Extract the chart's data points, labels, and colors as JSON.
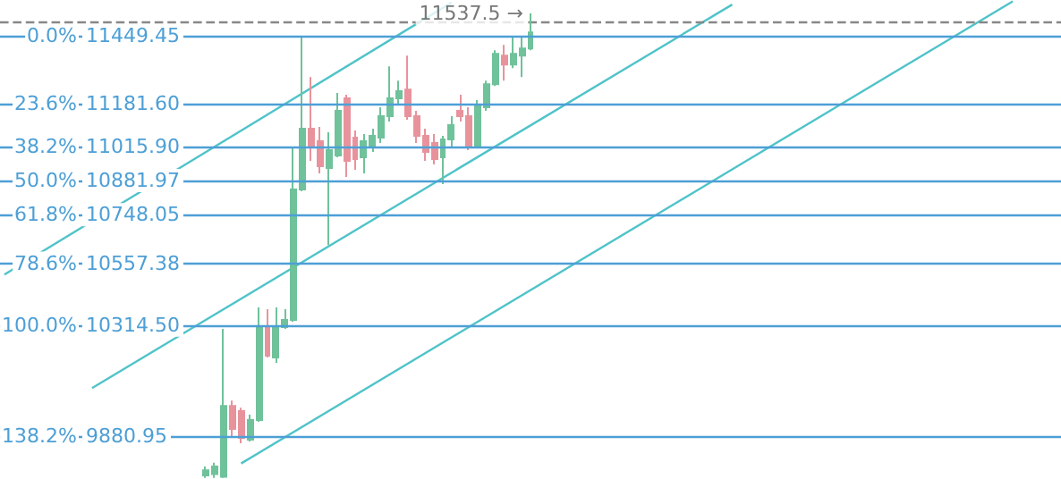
{
  "chart_data": {
    "type": "candlestick",
    "categories": [
      null,
      null,
      null,
      null,
      null,
      null,
      null,
      null,
      null,
      null,
      null,
      null,
      null,
      null,
      null,
      null,
      null,
      null,
      null,
      null,
      null,
      null,
      null,
      null,
      null,
      null,
      null,
      null,
      null,
      null,
      null,
      null,
      null,
      null,
      null,
      null,
      null,
      null,
      null,
      null,
      null,
      null,
      null,
      null,
      null,
      null,
      null,
      null,
      null,
      null,
      null,
      null,
      null,
      null,
      null,
      null,
      null,
      null,
      null,
      null,
      null,
      null,
      null,
      null,
      null,
      null,
      null,
      null,
      null,
      null,
      null,
      null,
      null,
      null,
      null,
      null,
      null,
      null,
      null,
      null,
      null,
      null,
      null,
      null,
      null,
      null,
      null,
      null,
      null,
      null,
      null,
      null,
      null,
      null,
      null,
      null,
      null,
      null,
      null,
      null,
      null,
      null,
      null,
      null,
      null,
      null,
      null,
      null,
      null,
      null,
      null,
      null,
      null,
      null,
      null,
      null,
      null,
      null,
      null,
      null,
      null
    ],
    "ohlc": [
      null,
      null,
      null,
      null,
      null,
      null,
      null,
      null,
      null,
      null,
      null,
      null,
      null,
      null,
      null,
      null,
      null,
      null,
      null,
      null,
      null,
      null,
      null,
      [
        9725,
        9760,
        9715,
        9745
      ],
      [
        9730,
        9775,
        9715,
        9760
      ],
      [
        9720,
        10300,
        9715,
        9998
      ],
      [
        9998,
        10019,
        9872,
        9907
      ],
      [
        9977,
        9991,
        9851,
        9872
      ],
      [
        9865,
        9963,
        9858,
        9942
      ],
      [
        9942,
        10384,
        9935,
        10307
      ],
      [
        10307,
        10377,
        10188,
        10195
      ],
      [
        10188,
        10384,
        10167,
        10307
      ],
      [
        10307,
        10377,
        10300,
        10335
      ],
      [
        10335,
        11008,
        10328,
        10847
      ],
      [
        10847,
        11449.45,
        10840,
        11085
      ],
      [
        11085,
        11288,
        10959,
        11015
      ],
      [
        11036,
        11092,
        10910,
        10938
      ],
      [
        10931,
        11071,
        10629,
        11001
      ],
      [
        10980,
        11225,
        10973,
        11155
      ],
      [
        11204,
        11218,
        10896,
        10959
      ],
      [
        11050,
        11078,
        10924,
        10966
      ],
      [
        10973,
        11064,
        10910,
        11036
      ],
      [
        11015,
        11085,
        10994,
        11057
      ],
      [
        11050,
        11169,
        11029,
        11134
      ],
      [
        11134,
        11330,
        11113,
        11204
      ],
      [
        11204,
        11274,
        11183,
        11232
      ],
      [
        11239,
        11372,
        11120,
        11134
      ],
      [
        11134,
        11155,
        11029,
        11057
      ],
      [
        11057,
        11085,
        10959,
        10994
      ],
      [
        11029,
        11064,
        10945,
        10966
      ],
      [
        10973,
        11057,
        10868,
        11043
      ],
      [
        11043,
        11134,
        11015,
        11099
      ],
      [
        11155,
        11218,
        11113,
        11134
      ],
      [
        11134,
        11169,
        11001,
        11015
      ],
      [
        11015,
        11197,
        11008,
        11176
      ],
      [
        11169,
        11274,
        11155,
        11260
      ],
      [
        11260,
        11393,
        11253,
        11379
      ],
      [
        11372,
        11414,
        11274,
        11337
      ],
      [
        11337,
        11449,
        11323,
        11379
      ],
      [
        11372,
        11449,
        11288,
        11400
      ],
      [
        11400,
        11537.5,
        11393,
        11463
      ],
      null,
      null,
      null,
      null,
      null,
      null,
      null,
      null,
      null,
      null,
      null,
      null,
      null,
      null,
      null,
      null,
      null,
      null,
      null,
      null,
      null,
      null,
      null,
      null,
      null,
      null,
      null,
      null,
      null,
      null,
      null,
      null,
      null,
      null,
      null,
      null,
      null,
      null,
      null,
      null,
      null,
      null,
      null,
      null,
      null,
      null,
      null,
      null,
      null,
      null,
      null,
      null,
      null,
      null,
      null,
      null,
      null,
      null,
      null,
      null
    ],
    "colors": [
      null,
      null,
      null,
      null,
      null,
      null,
      null,
      null,
      null,
      null,
      null,
      null,
      null,
      null,
      null,
      null,
      null,
      null,
      null,
      null,
      null,
      null,
      null,
      "#6fc29a",
      "#6fc29a",
      "#6fc29a",
      "#e8939c",
      "#e8939c",
      "#6fc29a",
      "#6fc29a",
      "#e8939c",
      "#6fc29a",
      "#6fc29a",
      "#6fc29a",
      "#6fc29a",
      "#e8939c",
      "#e8939c",
      "#6fc29a",
      "#6fc29a",
      "#e8939c",
      "#e8939c",
      "#6fc29a",
      "#6fc29a",
      "#6fc29a",
      "#6fc29a",
      "#6fc29a",
      "#e8939c",
      "#e8939c",
      "#e8939c",
      "#e8939c",
      "#6fc29a",
      "#6fc29a",
      "#e8939c",
      "#e8939c",
      "#6fc29a",
      "#6fc29a",
      "#6fc29a",
      "#e8939c",
      "#6fc29a",
      "#6fc29a",
      "#6fc29a",
      null,
      null,
      null,
      null,
      null,
      null,
      null,
      null,
      null,
      null,
      null,
      null,
      null,
      null,
      null,
      null,
      null,
      null,
      null,
      null,
      null,
      null,
      null,
      null,
      null,
      null,
      null,
      null,
      null,
      null,
      null,
      null,
      null,
      null,
      null,
      null,
      null,
      null,
      null,
      null,
      null,
      null,
      null,
      null,
      null,
      null,
      null,
      null,
      null,
      null,
      null,
      null,
      null,
      null,
      null,
      null,
      null,
      null,
      null,
      null
    ],
    "series": [
      {
        "type": "line",
        "color": "#4fc3c9",
        "values": [
          10513,
          null,
          null,
          null,
          null,
          null,
          null,
          null,
          null,
          null,
          null,
          null,
          null,
          null,
          null,
          null,
          null,
          null,
          null,
          null,
          null,
          null,
          null,
          null,
          null,
          null,
          null,
          null,
          null,
          null,
          null,
          null,
          null,
          null,
          null,
          null,
          null,
          null,
          null,
          null,
          null,
          null,
          null,
          null,
          null,
          null,
          null,
          null,
          null,
          null,
          null,
          11580,
          null,
          null,
          null,
          null,
          null,
          null,
          null,
          null,
          null,
          null,
          null,
          null,
          null,
          null,
          null,
          null,
          null,
          null,
          null,
          null,
          null,
          null,
          null,
          null,
          null,
          null,
          null,
          null,
          null,
          null,
          null,
          null,
          null,
          null,
          null,
          null,
          null,
          null,
          null,
          null,
          null,
          null,
          null,
          null,
          null,
          null,
          null,
          null,
          null,
          null,
          null,
          null,
          null,
          null,
          null,
          null,
          null,
          null,
          null,
          null,
          null,
          null,
          null,
          null,
          null,
          null,
          null,
          null,
          null
        ]
      },
      {
        "type": "line",
        "color": "#4fc3c9",
        "values": [
          null,
          null,
          null,
          null,
          null,
          null,
          null,
          null,
          null,
          null,
          10068,
          null,
          null,
          null,
          null,
          null,
          null,
          null,
          null,
          null,
          null,
          null,
          null,
          null,
          null,
          null,
          null,
          null,
          null,
          null,
          null,
          null,
          null,
          null,
          null,
          null,
          null,
          null,
          null,
          null,
          null,
          null,
          null,
          null,
          null,
          null,
          null,
          null,
          null,
          null,
          null,
          null,
          null,
          null,
          null,
          null,
          null,
          null,
          null,
          null,
          null,
          null,
          null,
          null,
          null,
          null,
          null,
          null,
          null,
          null,
          null,
          null,
          null,
          null,
          null,
          null,
          null,
          null,
          null,
          null,
          null,
          null,
          null,
          11572,
          null,
          null,
          null,
          null,
          null,
          null,
          null,
          null,
          null,
          null,
          null,
          null,
          null,
          null,
          null,
          null,
          null,
          null,
          null,
          null,
          null,
          null,
          null,
          null,
          null,
          null,
          null,
          null,
          null,
          null,
          null,
          null,
          null,
          null,
          null,
          null,
          null
        ]
      },
      {
        "type": "line",
        "color": "#4fc3c9",
        "values": [
          null,
          null,
          null,
          null,
          null,
          null,
          null,
          null,
          null,
          null,
          null,
          null,
          null,
          null,
          null,
          null,
          null,
          null,
          null,
          null,
          null,
          null,
          null,
          null,
          null,
          null,
          null,
          9772,
          null,
          null,
          null,
          null,
          null,
          null,
          null,
          null,
          null,
          null,
          null,
          null,
          null,
          null,
          null,
          null,
          null,
          null,
          null,
          null,
          null,
          null,
          null,
          null,
          null,
          null,
          null,
          null,
          null,
          null,
          null,
          null,
          null,
          null,
          null,
          null,
          null,
          null,
          null,
          null,
          null,
          null,
          null,
          null,
          null,
          null,
          null,
          null,
          null,
          null,
          null,
          null,
          null,
          null,
          null,
          null,
          null,
          null,
          null,
          null,
          null,
          null,
          null,
          null,
          null,
          null,
          null,
          null,
          null,
          null,
          null,
          null,
          null,
          null,
          null,
          null,
          null,
          null,
          null,
          null,
          null,
          null,
          null,
          null,
          null,
          null,
          null,
          11585,
          null,
          null,
          null,
          null,
          null
        ]
      }
    ],
    "ylim": [
      9711,
      11590
    ],
    "tick_labels": "y",
    "yticks": [
      9880.95,
      {
        "value": 10314.5,
        "label": "10314.50"
      },
      10557.38,
      10748.05,
      10881.97,
      {
        "value": 11015.9,
        "label": "11015.90"
      },
      {
        "value": 11181.6,
        "label": "11181.60"
      },
      11449.45
    ],
    "grid": "y",
    "ref_lines": [
      {
        "axis": "y",
        "value": 11505,
        "color": "#888888",
        "line_style": "dashed"
      }
    ],
    "annotations": [
      {
        "text": "11537.5 →",
        "y": 11537.5
      },
      "138.2%",
      "100.0%",
      "78.6%",
      "61.8%",
      "50.0%",
      "38.2%",
      "23.6%",
      "0.0%"
    ]
  }
}
